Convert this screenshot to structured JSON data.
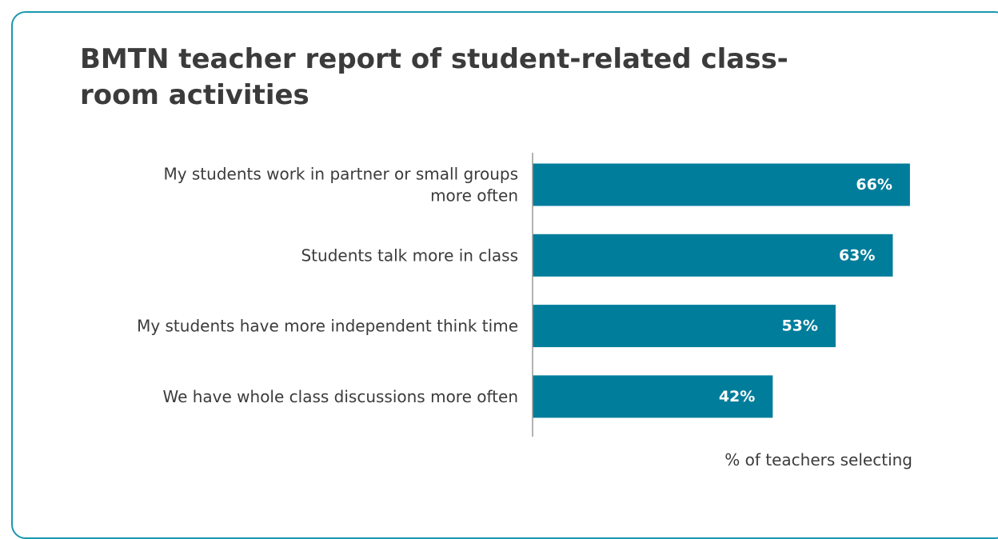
{
  "chart_data": {
    "type": "bar",
    "orientation": "horizontal",
    "title": "BMTN teacher report of student-related class-room activities",
    "categories": [
      [
        "My students work in partner or small groups",
        "more often"
      ],
      [
        "Students talk more in class"
      ],
      [
        "My students have more independent think time"
      ],
      [
        "We have whole class discussions more often"
      ]
    ],
    "values": [
      66,
      63,
      53,
      42
    ],
    "value_labels": [
      "66%",
      "63%",
      "53%",
      "42%"
    ],
    "xlabel": "% of teachers selecting",
    "xlim": [
      0,
      100
    ],
    "grid": false,
    "legend": "none",
    "colors": {
      "bar": "#007d9b",
      "border": "#1b97b0",
      "axis": "#9a9a9a",
      "text": "#3b3b3b",
      "bar_text": "#ffffff"
    }
  }
}
